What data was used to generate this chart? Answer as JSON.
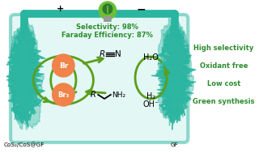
{
  "bg_color": "#ffffff",
  "teal_color": "#2ab5a0",
  "teal_light": "#c8f0ea",
  "green_arrow": "#5a9e1a",
  "orange_circle": "#f0834a",
  "title_green": "#2e8b2e",
  "selectivity_text": "Selectivity: 98%",
  "faraday_text": "Faraday Efficiency: 87%",
  "plus_label": "+",
  "minus_label": "−",
  "anode_label": "CoS₂/CoS@GF",
  "cathode_label": "GF",
  "br_label": "Br",
  "br3_label": "Br₃",
  "h2o": "H₂O",
  "h2": "H₂",
  "oh": "OH⁻",
  "benefits": [
    "High selectivity",
    "Oxidant free",
    "Low cost",
    "Green synthesis"
  ]
}
